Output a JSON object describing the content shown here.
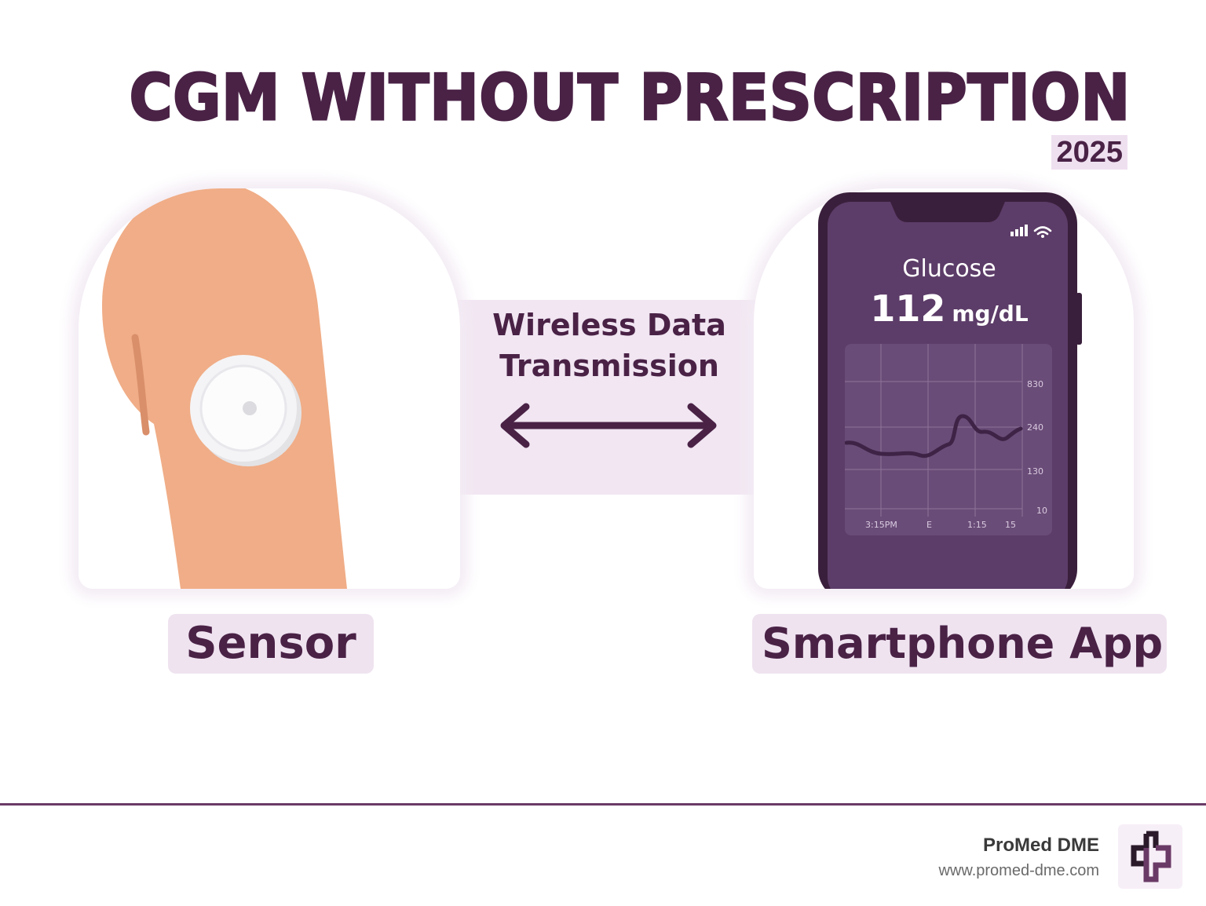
{
  "header": {
    "title": "CGM WITHOUT PRESCRIPTION",
    "year": "2025"
  },
  "diagram": {
    "sensor_label": "Sensor",
    "transmission_label": "Wireless Data Transmission",
    "app_label": "Smartphone App"
  },
  "phone": {
    "glucose_label": "Glucose",
    "glucose_value": "112",
    "glucose_unit": "mg/dL",
    "chart": {
      "y_ticks": [
        "830",
        "240",
        "130",
        "10"
      ],
      "x_ticks": [
        "3:15PM",
        "E",
        "1:15",
        "15"
      ]
    }
  },
  "footer": {
    "brand_name": "ProMed DME",
    "brand_url": "www.promed-dme.com"
  },
  "colors": {
    "brand": "#4a2246",
    "accent_light": "#efe3f0",
    "skin": "#f0ad87",
    "phone_screen": "#5a3a66"
  }
}
